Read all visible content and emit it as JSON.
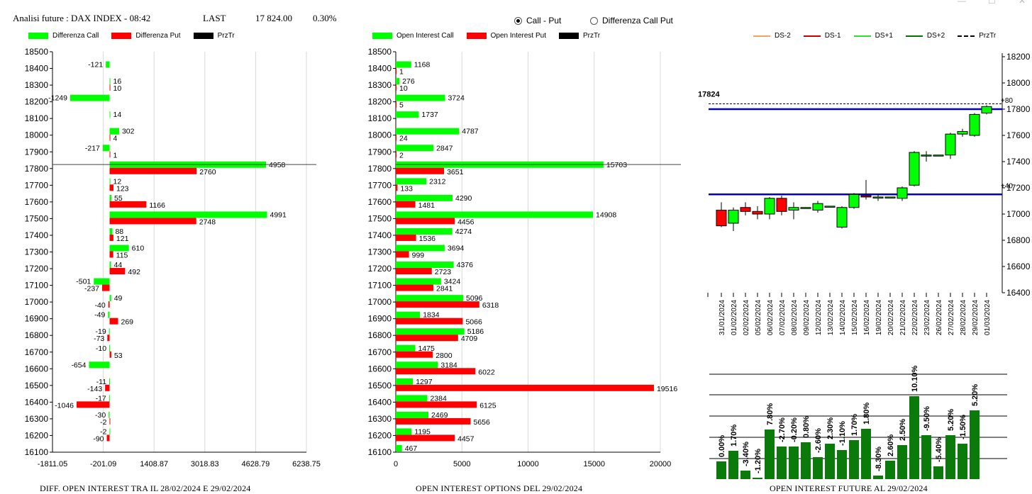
{
  "header": {
    "title": "Analisi future : DAX INDEX - 08:42",
    "last_label": "LAST",
    "last_value": "17 824.00",
    "change": "0.30%"
  },
  "mode_selector": {
    "options": [
      {
        "label": "Call - Put",
        "selected": true
      },
      {
        "label": "Differenza Call Put",
        "selected": false
      }
    ]
  },
  "colors": {
    "call": "#00ff00",
    "put": "#ff0000",
    "price": "#000000",
    "ds_minus2": "#f4a460",
    "ds_minus1": "#cc0000",
    "ds_plus1": "#33dd33",
    "ds_plus2": "#007700",
    "level_line": "#0000cc",
    "oi_bar": "#0a7a0a"
  },
  "panel_left": {
    "legend": [
      "Differenza Call",
      "Differenza Put",
      "PrzTr"
    ],
    "footer": "DIFF. OPEN INTEREST TRA IL 28/02/2024 E 29/02/2024"
  },
  "panel_mid": {
    "legend": [
      "Open Interest Call",
      "Open Interest Put",
      "PrzTr"
    ],
    "footer": "OPEN INTEREST OPTIONS DEL 29/02/2024"
  },
  "panel_right": {
    "legend": [
      "DS-2",
      "DS-1",
      "DS+1",
      "DS+2",
      "PrzTr"
    ],
    "price_label": "17824",
    "upper_tag": "+80",
    "lower_tag": "+40",
    "footer": "OPEN INTEREST FUTURE AL 29/02/2024"
  },
  "chart_data": [
    {
      "type": "bar",
      "orientation": "horizontal",
      "categories": [
        "18400",
        "18300",
        "18200",
        "18100",
        "18000",
        "17900",
        "17800",
        "17700",
        "17600",
        "17500",
        "17400",
        "17300",
        "17200",
        "17100",
        "17000",
        "16900",
        "16800",
        "16700",
        "16600",
        "16500",
        "16400",
        "16300",
        "16200"
      ],
      "series": [
        {
          "name": "Differenza Call",
          "values": [
            -121,
            16,
            -1249,
            14,
            302,
            -217,
            4958,
            12,
            55,
            4991,
            88,
            610,
            44,
            -501,
            49,
            -49,
            -19,
            -10,
            -654,
            -11,
            -17,
            -30,
            -2
          ]
        },
        {
          "name": "Differenza Put",
          "values": [
            null,
            10,
            null,
            null,
            4,
            1,
            2760,
            123,
            1166,
            2748,
            121,
            115,
            492,
            -237,
            -40,
            269,
            -73,
            53,
            null,
            -143,
            -1046,
            -2,
            -90
          ]
        }
      ],
      "ylim": [
        16100,
        18500
      ],
      "y_ticks": [
        "18500",
        "18400",
        "18300",
        "18200",
        "18100",
        "18000",
        "17900",
        "17800",
        "17700",
        "17600",
        "17500",
        "17400",
        "17300",
        "17200",
        "17100",
        "17000",
        "16900",
        "16800",
        "16700",
        "16600",
        "16500",
        "16400",
        "16300",
        "16200",
        "16100"
      ],
      "xlim": [
        -1811.05,
        6238.75
      ],
      "x_ticks": [
        "-1811.05",
        "-201.09",
        "1408.87",
        "3018.83",
        "4628.79",
        "6238.75"
      ],
      "price_level": 17824
    },
    {
      "type": "bar",
      "orientation": "horizontal",
      "categories": [
        "18400",
        "18300",
        "18200",
        "18100",
        "18000",
        "17900",
        "17800",
        "17700",
        "17600",
        "17500",
        "17400",
        "17300",
        "17200",
        "17100",
        "17000",
        "16900",
        "16800",
        "16700",
        "16600",
        "16500",
        "16400",
        "16300",
        "16200",
        "16100"
      ],
      "series": [
        {
          "name": "Open Interest Call",
          "values": [
            1168,
            276,
            3724,
            1737,
            4787,
            2847,
            15703,
            2312,
            4290,
            14908,
            4274,
            3694,
            4376,
            3424,
            5096,
            1834,
            5186,
            1475,
            3184,
            1297,
            2384,
            2469,
            1195,
            467
          ]
        },
        {
          "name": "Open Interest Put",
          "values": [
            1,
            10,
            5,
            null,
            24,
            2,
            3651,
            133,
            1481,
            4456,
            1536,
            999,
            2723,
            2841,
            6318,
            5066,
            4709,
            2800,
            6022,
            19516,
            6125,
            5656,
            4457,
            null
          ]
        }
      ],
      "ylim": [
        16100,
        18500
      ],
      "y_ticks": [
        "18500",
        "18400",
        "18300",
        "18200",
        "18100",
        "18000",
        "17900",
        "17800",
        "17700",
        "17600",
        "17500",
        "17400",
        "17300",
        "17200",
        "17100",
        "17000",
        "16900",
        "16800",
        "16700",
        "16600",
        "16500",
        "16400",
        "16300",
        "16200",
        "16100"
      ],
      "xlim": [
        0,
        20000
      ],
      "x_ticks": [
        "0",
        "5000",
        "10000",
        "15000",
        "20000"
      ],
      "price_level": 17824
    },
    {
      "type": "candlestick",
      "dates": [
        "31/01/2024",
        "01/02/2024",
        "02/02/2024",
        "05/02/2024",
        "06/02/2024",
        "07/02/2024",
        "08/02/2024",
        "09/02/2024",
        "12/02/2024",
        "13/02/2024",
        "14/02/2024",
        "15/02/2024",
        "16/02/2024",
        "19/02/2024",
        "20/02/2024",
        "21/02/2024",
        "22/02/2024",
        "23/02/2024",
        "26/02/2024",
        "27/02/2024",
        "28/02/2024",
        "29/02/2024",
        "01/03/2024"
      ],
      "candles": [
        {
          "o": 17030,
          "h": 17090,
          "l": 16900,
          "c": 16910
        },
        {
          "o": 16930,
          "h": 17050,
          "l": 16870,
          "c": 17030
        },
        {
          "o": 17050,
          "h": 17090,
          "l": 16990,
          "c": 17020
        },
        {
          "o": 17020,
          "h": 17060,
          "l": 16960,
          "c": 17000
        },
        {
          "o": 17000,
          "h": 17130,
          "l": 16960,
          "c": 17120
        },
        {
          "o": 17120,
          "h": 17140,
          "l": 16990,
          "c": 17020
        },
        {
          "o": 17030,
          "h": 17090,
          "l": 16960,
          "c": 17050
        },
        {
          "o": 17050,
          "h": 17050,
          "l": 17050,
          "c": 17050
        },
        {
          "o": 17030,
          "h": 17100,
          "l": 17010,
          "c": 17080
        },
        {
          "o": 17060,
          "h": 17060,
          "l": 17060,
          "c": 17060
        },
        {
          "o": 16900,
          "h": 17060,
          "l": 16890,
          "c": 17050
        },
        {
          "o": 17050,
          "h": 17160,
          "l": 17040,
          "c": 17150
        },
        {
          "o": 17140,
          "h": 17260,
          "l": 17110,
          "c": 17130
        },
        {
          "o": 17130,
          "h": 17150,
          "l": 17100,
          "c": 17130
        },
        {
          "o": 17130,
          "h": 17130,
          "l": 17130,
          "c": 17130
        },
        {
          "o": 17120,
          "h": 17210,
          "l": 17100,
          "c": 17200
        },
        {
          "o": 17220,
          "h": 17480,
          "l": 17210,
          "c": 17470
        },
        {
          "o": 17450,
          "h": 17480,
          "l": 17400,
          "c": 17450
        },
        {
          "o": 17450,
          "h": 17450,
          "l": 17450,
          "c": 17450
        },
        {
          "o": 17450,
          "h": 17620,
          "l": 17420,
          "c": 17610
        },
        {
          "o": 17610,
          "h": 17650,
          "l": 17590,
          "c": 17630
        },
        {
          "o": 17600,
          "h": 17770,
          "l": 17590,
          "c": 17760
        },
        {
          "o": 17770,
          "h": 17830,
          "l": 17760,
          "c": 17820
        }
      ],
      "ylim": [
        16400,
        18200
      ],
      "y_ticks": [
        "18200",
        "18000",
        "17800",
        "17600",
        "17400",
        "17200",
        "17000",
        "16800",
        "16600",
        "16400"
      ],
      "levels": [
        17800,
        17150
      ],
      "price_level": 17824
    },
    {
      "type": "bar",
      "title": "OPEN INTEREST FUTURE AL 29/02/2024",
      "categories": [
        "31/01/2024",
        "01/02/2024",
        "02/02/2024",
        "05/02/2024",
        "06/02/2024",
        "07/02/2024",
        "08/02/2024",
        "09/02/2024",
        "12/02/2024",
        "13/02/2024",
        "14/02/2024",
        "15/02/2024",
        "16/02/2024",
        "19/02/2024",
        "20/02/2024",
        "21/02/2024",
        "22/02/2024",
        "23/02/2024",
        "26/02/2024",
        "27/02/2024",
        "28/02/2024",
        "29/02/2024",
        "01/03/2024"
      ],
      "labels": [
        "0.00%",
        "1.70%",
        "-3.40%",
        "-1.20%",
        "7.80%",
        "-2.70%",
        "-0.20%",
        "0.80%",
        "-2.60%",
        "2.30%",
        "-1.10%",
        "1.70%",
        "1.80%",
        "-8.30%",
        "2.60%",
        "2.50%",
        "10.10%",
        "-9.50%",
        "-5.40%",
        "5.20%",
        "-1.50%",
        "5.20%",
        ""
      ],
      "values": [
        25,
        40,
        12,
        2,
        70,
        46,
        46,
        52,
        31,
        50,
        41,
        55,
        71,
        5,
        26,
        48,
        117,
        62,
        18,
        62,
        50,
        97,
        null
      ]
    }
  ]
}
